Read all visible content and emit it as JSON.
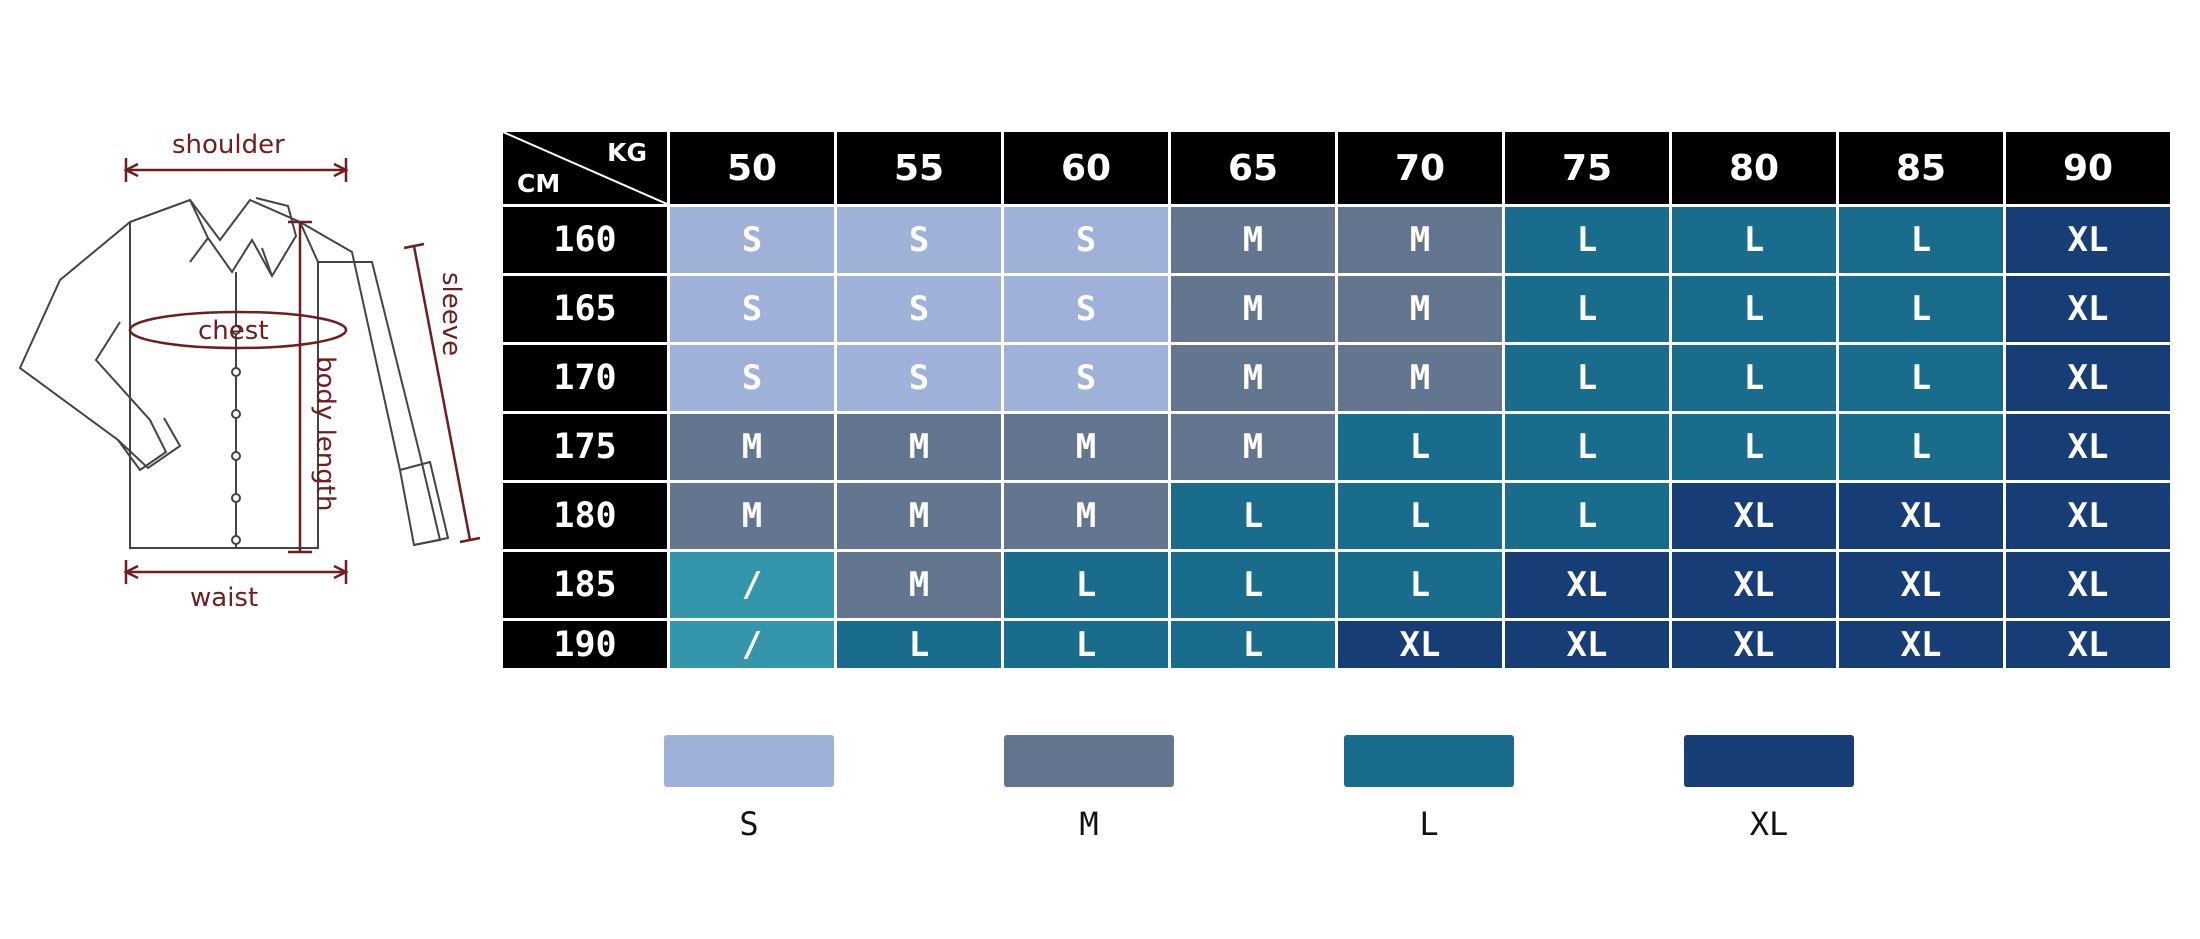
{
  "diagram": {
    "labels": {
      "shoulder": "shoulder",
      "chest": "chest",
      "sleeve": "sleeve",
      "body_length": "body length",
      "waist": "waist"
    },
    "line_color": "#6e1e1e"
  },
  "table": {
    "corner_top": "KG",
    "corner_bottom": "CM",
    "weights": [
      "50",
      "55",
      "60",
      "65",
      "70",
      "75",
      "80",
      "85",
      "90"
    ],
    "heights": [
      "160",
      "165",
      "170",
      "175",
      "180",
      "185",
      "190"
    ],
    "sizes": [
      [
        "S",
        "S",
        "S",
        "M",
        "M",
        "L",
        "L",
        "L",
        "XL"
      ],
      [
        "S",
        "S",
        "S",
        "M",
        "M",
        "L",
        "L",
        "L",
        "XL"
      ],
      [
        "S",
        "S",
        "S",
        "M",
        "M",
        "L",
        "L",
        "L",
        "XL"
      ],
      [
        "M",
        "M",
        "M",
        "M",
        "L",
        "L",
        "L",
        "L",
        "XL"
      ],
      [
        "M",
        "M",
        "M",
        "L",
        "L",
        "L",
        "XL",
        "XL",
        "XL"
      ],
      [
        "/",
        "M",
        "L",
        "L",
        "L",
        "XL",
        "XL",
        "XL",
        "XL"
      ],
      [
        "/",
        "L",
        "L",
        "L",
        "XL",
        "XL",
        "XL",
        "XL",
        "XL"
      ]
    ],
    "colors": {
      "S": "#9fb1d9",
      "M": "#647590",
      "L": "#1a6c8d",
      "XL": "#163d75",
      "/": "#3496aa"
    }
  },
  "legend": [
    {
      "label": "S",
      "color": "#9fb1d9"
    },
    {
      "label": "M",
      "color": "#647590"
    },
    {
      "label": "L",
      "color": "#1a6c8d"
    },
    {
      "label": "XL",
      "color": "#163d75"
    }
  ]
}
